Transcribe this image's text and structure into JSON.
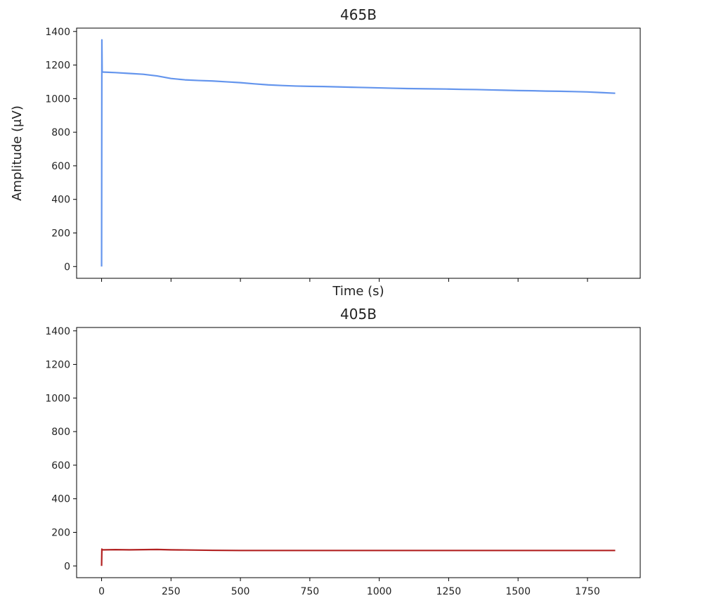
{
  "chart_data": [
    {
      "type": "line",
      "title": "465B",
      "xlabel": "Time (s)",
      "ylabel": "Amplitude (μV)",
      "xlim": [
        -90,
        1940
      ],
      "ylim": [
        -70,
        1420
      ],
      "xticks": [
        0,
        250,
        500,
        750,
        1000,
        1250,
        1500,
        1750
      ],
      "yticks": [
        0,
        200,
        400,
        600,
        800,
        1000,
        1200,
        1400
      ],
      "show_xtick_labels": false,
      "grid": false,
      "color": "#6495ed",
      "series": [
        {
          "x": [
            0,
            1,
            2,
            3,
            5,
            10,
            25,
            50,
            100,
            150,
            200,
            250,
            300,
            350,
            400,
            450,
            500,
            550,
            600,
            650,
            700,
            750,
            800,
            850,
            900,
            950,
            1000,
            1050,
            1100,
            1150,
            1200,
            1250,
            1300,
            1350,
            1400,
            1450,
            1500,
            1550,
            1600,
            1650,
            1700,
            1750,
            1800,
            1850
          ],
          "y": [
            0,
            1350,
            1160,
            1160,
            1158,
            1158,
            1157,
            1155,
            1150,
            1145,
            1135,
            1120,
            1112,
            1108,
            1105,
            1100,
            1095,
            1088,
            1082,
            1078,
            1075,
            1073,
            1072,
            1070,
            1068,
            1066,
            1064,
            1062,
            1060,
            1059,
            1058,
            1057,
            1055,
            1054,
            1052,
            1050,
            1048,
            1047,
            1045,
            1044,
            1042,
            1040,
            1036,
            1032
          ]
        }
      ]
    },
    {
      "type": "line",
      "title": "405B",
      "xlabel": "",
      "ylabel": "",
      "xlim": [
        -90,
        1940
      ],
      "ylim": [
        -70,
        1420
      ],
      "xticks": [
        0,
        250,
        500,
        750,
        1000,
        1250,
        1500,
        1750
      ],
      "yticks": [
        0,
        200,
        400,
        600,
        800,
        1000,
        1200,
        1400
      ],
      "show_xtick_labels": true,
      "grid": false,
      "color": "#b22222",
      "series": [
        {
          "x": [
            0,
            1,
            2,
            5,
            10,
            50,
            100,
            150,
            200,
            250,
            300,
            350,
            400,
            500,
            750,
            1000,
            1250,
            1500,
            1750,
            1850
          ],
          "y": [
            0,
            100,
            95,
            96,
            96,
            97,
            96,
            97,
            98,
            96,
            95,
            94,
            93,
            92,
            92,
            92,
            92,
            92,
            92,
            92
          ]
        }
      ]
    }
  ]
}
